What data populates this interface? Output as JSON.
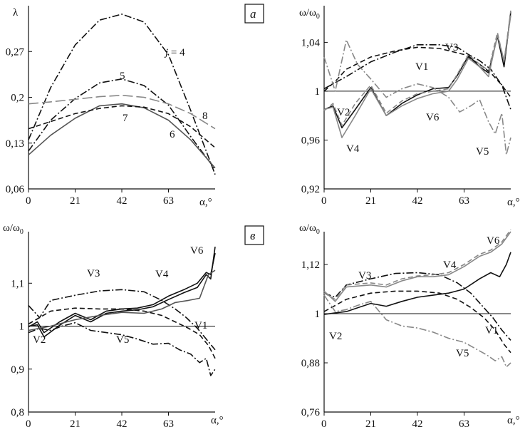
{
  "chart_data": [
    {
      "type": "line",
      "panel_tag": "а",
      "ylabel": "λ",
      "xlabel": "α,°",
      "xlim": [
        0,
        84
      ],
      "ylim": [
        0.06,
        0.34
      ],
      "xticks": [
        "0",
        "21",
        "42",
        "63"
      ],
      "yticks": [
        {
          "v": 0.06,
          "t": "0,06"
        },
        {
          "v": 0.13,
          "t": "0,13"
        },
        {
          "v": 0.2,
          "t": "0,2"
        },
        {
          "v": 0.27,
          "t": "0,27"
        }
      ],
      "series": [
        {
          "name": "j = 4",
          "style": "dashdot",
          "color": "#111111",
          "x": [
            0,
            10,
            21,
            32,
            42,
            52,
            63,
            73,
            84
          ],
          "values": [
            0.135,
            0.215,
            0.28,
            0.318,
            0.327,
            0.315,
            0.265,
            0.18,
            0.082
          ]
        },
        {
          "name": "5",
          "style": "dashdot",
          "color": "#111111",
          "x": [
            0,
            10,
            21,
            32,
            42,
            52,
            63,
            73,
            84
          ],
          "values": [
            0.118,
            0.165,
            0.198,
            0.222,
            0.228,
            0.218,
            0.188,
            0.14,
            0.09
          ]
        },
        {
          "name": "6",
          "style": "solid",
          "color": "#555555",
          "x": [
            0,
            10,
            21,
            32,
            42,
            52,
            63,
            73,
            84
          ],
          "values": [
            0.112,
            0.142,
            0.168,
            0.187,
            0.19,
            0.184,
            0.165,
            0.135,
            0.092
          ]
        },
        {
          "name": "7",
          "style": "dashed",
          "color": "#111111",
          "x": [
            0,
            10,
            21,
            32,
            42,
            52,
            63,
            73,
            84
          ],
          "values": [
            0.152,
            0.163,
            0.175,
            0.183,
            0.187,
            0.185,
            0.175,
            0.155,
            0.123
          ]
        },
        {
          "name": "8",
          "style": "longdash",
          "color": "#888888",
          "x": [
            0,
            10,
            21,
            32,
            42,
            52,
            63,
            73,
            84
          ],
          "values": [
            0.19,
            0.193,
            0.197,
            0.201,
            0.203,
            0.2,
            0.19,
            0.175,
            0.152
          ]
        }
      ],
      "annotations": [
        "j = 4",
        "5",
        "6",
        "7",
        "8"
      ]
    },
    {
      "type": "line",
      "ylabel": "ω/ω0",
      "xlabel": "α,°",
      "xlim": [
        0,
        84
      ],
      "ylim": [
        0.92,
        1.07
      ],
      "refline": 1,
      "xticks": [
        "0",
        "21",
        "42",
        "63"
      ],
      "yticks": [
        {
          "v": 0.92,
          "t": "0,92"
        },
        {
          "v": 0.96,
          "t": "0,96"
        },
        {
          "v": 1,
          "t": "1"
        },
        {
          "v": 1.04,
          "t": "1,04"
        }
      ],
      "series": [
        {
          "name": "V1",
          "style": "dashed",
          "color": "#111111",
          "x": [
            0,
            5,
            10,
            21,
            32,
            42,
            52,
            63,
            70,
            75,
            80,
            84
          ],
          "values": [
            1.0,
            1.008,
            1.018,
            1.028,
            1.033,
            1.036,
            1.035,
            1.03,
            1.022,
            1.015,
            1.005,
            0.995
          ]
        },
        {
          "name": "V2",
          "style": "solid",
          "color": "#111111",
          "x": [
            0,
            4,
            8,
            14,
            21,
            28,
            35,
            42,
            49,
            56,
            60,
            65,
            70,
            74,
            78,
            81,
            84
          ],
          "values": [
            0.985,
            0.988,
            0.97,
            0.985,
            1.003,
            0.98,
            0.99,
            0.997,
            1.002,
            1.003,
            1.013,
            1.029,
            1.02,
            1.015,
            1.045,
            1.02,
            1.065
          ]
        },
        {
          "name": "V3",
          "style": "dashdot",
          "color": "#111111",
          "x": [
            0,
            10,
            21,
            32,
            42,
            52,
            60,
            65,
            70,
            75,
            80,
            84
          ],
          "values": [
            1.002,
            1.012,
            1.024,
            1.032,
            1.038,
            1.038,
            1.036,
            1.03,
            1.025,
            1.018,
            1.005,
            0.985
          ]
        },
        {
          "name": "V4",
          "style": "solid",
          "color": "#888888",
          "x": [
            0,
            4,
            8,
            14,
            21,
            28,
            35,
            42,
            49,
            56,
            60,
            65,
            70,
            74,
            78,
            81,
            84
          ],
          "values": [
            0.985,
            0.987,
            0.962,
            0.98,
            1.002,
            0.98,
            0.988,
            0.994,
            0.998,
            1.0,
            1.01,
            1.027,
            1.02,
            1.012,
            1.046,
            1.025,
            1.062
          ]
        },
        {
          "name": "V5",
          "style": "dashdot",
          "color": "#888888",
          "x": [
            0,
            5,
            10,
            15,
            21,
            28,
            35,
            42,
            49,
            56,
            61,
            66,
            70,
            74,
            77,
            80,
            82,
            84
          ],
          "values": [
            1.028,
            1.0,
            1.042,
            1.022,
            1.01,
            0.995,
            1.002,
            1.006,
            1.003,
            0.995,
            0.983,
            0.988,
            0.993,
            0.975,
            0.965,
            0.982,
            0.948,
            0.962
          ]
        },
        {
          "name": "V6",
          "style": "dashed",
          "color": "#888888",
          "x": [
            0,
            4,
            8,
            14,
            21,
            28,
            35,
            42,
            49,
            56,
            60,
            65,
            70,
            74,
            78,
            81,
            84
          ],
          "values": [
            0.984,
            0.99,
            0.972,
            0.99,
            1.005,
            0.982,
            0.992,
            0.998,
            1.0,
            1.002,
            1.014,
            1.03,
            1.022,
            1.017,
            1.048,
            1.024,
            1.066
          ]
        }
      ],
      "annotations": [
        "V1",
        "V2",
        "V3",
        "V4",
        "V5",
        "V6"
      ]
    },
    {
      "type": "line",
      "panel_tag": "в",
      "ylabel": "ω/ω0",
      "xlabel": "α,°",
      "xlim": [
        0,
        84
      ],
      "ylim": [
        0.8,
        1.22
      ],
      "refline": 1,
      "xticks": [
        "0",
        "21",
        "42",
        "63"
      ],
      "yticks": [
        {
          "v": 0.8,
          "t": "0,8"
        },
        {
          "v": 0.9,
          "t": "0,9"
        },
        {
          "v": 1,
          "t": "1"
        },
        {
          "v": 1.1,
          "t": "1,1"
        }
      ],
      "series": [
        {
          "name": "V1",
          "style": "dashed",
          "color": "#111111",
          "x": [
            0,
            5,
            10,
            21,
            32,
            42,
            52,
            60,
            66,
            72,
            77,
            81,
            84
          ],
          "values": [
            1.005,
            1.02,
            1.035,
            1.042,
            1.04,
            1.04,
            1.035,
            1.025,
            1.01,
            0.995,
            0.98,
            0.955,
            0.925
          ]
        },
        {
          "name": "V2",
          "style": "solid",
          "color": "#111111",
          "x": [
            0,
            4,
            7,
            14,
            21,
            28,
            35,
            42,
            49,
            56,
            63,
            70,
            76,
            80,
            82,
            84
          ],
          "values": [
            0.998,
            1.01,
            0.985,
            1.01,
            1.03,
            1.015,
            1.035,
            1.04,
            1.042,
            1.05,
            1.07,
            1.085,
            1.1,
            1.125,
            1.12,
            1.17
          ]
        },
        {
          "name": "V3",
          "style": "dashdot",
          "color": "#111111",
          "x": [
            0,
            5,
            10,
            21,
            32,
            42,
            52,
            60,
            66,
            71,
            76,
            80,
            84
          ],
          "values": [
            1.048,
            1.02,
            1.06,
            1.072,
            1.082,
            1.085,
            1.08,
            1.06,
            1.04,
            1.02,
            0.995,
            0.97,
            0.945
          ]
        },
        {
          "name": "V4",
          "style": "solid",
          "color": "#111111",
          "x": [
            0,
            4,
            7,
            14,
            21,
            28,
            35,
            42,
            49,
            56,
            63,
            70,
            76,
            80,
            82,
            84
          ],
          "values": [
            1.0,
            1.003,
            0.975,
            1.002,
            1.025,
            1.01,
            1.03,
            1.035,
            1.038,
            1.045,
            1.062,
            1.078,
            1.09,
            1.12,
            1.11,
            1.185
          ]
        },
        {
          "name": "V5",
          "style": "dashdot",
          "color": "#111111",
          "x": [
            0,
            5,
            10,
            15,
            21,
            28,
            35,
            42,
            49,
            56,
            63,
            68,
            73,
            77,
            80,
            82,
            84
          ],
          "values": [
            0.985,
            0.995,
            0.99,
            1.0,
            1.008,
            0.99,
            0.985,
            0.98,
            0.97,
            0.958,
            0.96,
            0.945,
            0.935,
            0.915,
            0.925,
            0.885,
            0.9
          ]
        },
        {
          "name": "V6",
          "style": "solid",
          "color": "#555555",
          "x": [
            0,
            5,
            10,
            21,
            32,
            42,
            52,
            60,
            66,
            72,
            77,
            81,
            84
          ],
          "values": [
            0.99,
            0.995,
            1.0,
            1.015,
            1.025,
            1.032,
            1.03,
            1.04,
            1.055,
            1.06,
            1.065,
            1.12,
            1.13
          ]
        }
      ],
      "annotations": [
        "V1",
        "V2",
        "V3",
        "V4",
        "V5",
        "V6"
      ]
    },
    {
      "type": "line",
      "ylabel": "ω/ω0",
      "xlabel": "α,°",
      "xlim": [
        0,
        84
      ],
      "ylim": [
        0.76,
        1.2
      ],
      "refline": 1,
      "xticks": [
        "0",
        "21",
        "42",
        "63"
      ],
      "yticks": [
        {
          "v": 0.76,
          "t": "0,76"
        },
        {
          "v": 0.88,
          "t": "0,88"
        },
        {
          "v": 1,
          "t": "1"
        },
        {
          "v": 1.12,
          "t": "1,12"
        }
      ],
      "series": [
        {
          "name": "V1",
          "style": "dashed",
          "color": "#111111",
          "x": [
            0,
            5,
            10,
            21,
            32,
            42,
            52,
            60,
            66,
            72,
            77,
            81,
            84
          ],
          "values": [
            1.005,
            1.02,
            1.035,
            1.05,
            1.055,
            1.055,
            1.05,
            1.035,
            1.015,
            0.99,
            0.96,
            0.925,
            0.905
          ]
        },
        {
          "name": "V2",
          "style": "solid",
          "color": "#111111",
          "x": [
            0,
            5,
            10,
            21,
            28,
            35,
            42,
            49,
            56,
            63,
            70,
            75,
            79,
            82,
            84
          ],
          "values": [
            0.998,
            1.002,
            1.005,
            1.025,
            1.018,
            1.03,
            1.04,
            1.045,
            1.05,
            1.06,
            1.085,
            1.1,
            1.09,
            1.12,
            1.15
          ]
        },
        {
          "name": "V3",
          "style": "dashdot",
          "color": "#111111",
          "x": [
            0,
            5,
            10,
            21,
            32,
            42,
            52,
            60,
            66,
            71,
            76,
            80,
            84
          ],
          "values": [
            1.05,
            1.04,
            1.07,
            1.085,
            1.098,
            1.1,
            1.095,
            1.075,
            1.05,
            1.02,
            0.99,
            0.96,
            0.935
          ]
        },
        {
          "name": "V4",
          "style": "solid",
          "color": "#888888",
          "x": [
            0,
            5,
            10,
            21,
            28,
            35,
            42,
            49,
            56,
            63,
            70,
            75,
            80,
            84
          ],
          "values": [
            1.055,
            1.03,
            1.065,
            1.07,
            1.065,
            1.08,
            1.09,
            1.09,
            1.095,
            1.115,
            1.14,
            1.15,
            1.17,
            1.2
          ]
        },
        {
          "name": "V5",
          "style": "dashdot",
          "color": "#888888",
          "x": [
            0,
            5,
            10,
            15,
            21,
            28,
            35,
            42,
            49,
            56,
            63,
            68,
            73,
            77,
            80,
            82,
            84
          ],
          "values": [
            1.045,
            1.005,
            1.01,
            1.02,
            1.03,
            0.985,
            0.97,
            0.965,
            0.955,
            0.94,
            0.93,
            0.915,
            0.9,
            0.885,
            0.895,
            0.87,
            0.88
          ]
        },
        {
          "name": "V6",
          "style": "dashed",
          "color": "#888888",
          "x": [
            0,
            5,
            10,
            21,
            28,
            35,
            42,
            49,
            56,
            63,
            70,
            75,
            80,
            84
          ],
          "values": [
            1.05,
            1.035,
            1.07,
            1.075,
            1.07,
            1.085,
            1.092,
            1.095,
            1.1,
            1.12,
            1.145,
            1.155,
            1.175,
            1.205
          ]
        }
      ],
      "annotations": [
        "V1",
        "V2",
        "V3",
        "V4",
        "V5",
        "V6"
      ]
    }
  ]
}
